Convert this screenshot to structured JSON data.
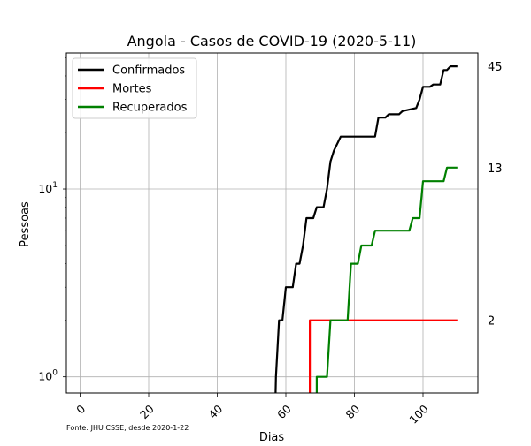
{
  "chart_data": {
    "type": "line",
    "title": "Angola - Casos de COVID-19 (2020-5-11)",
    "xlabel": "Dias",
    "ylabel": "Pessoas",
    "yscale": "log",
    "xlim": [
      -4,
      116
    ],
    "ylim": [
      0.82,
      53
    ],
    "grid": true,
    "legend_position": "top-left",
    "x_ticks": [
      0,
      20,
      40,
      60,
      80,
      100
    ],
    "x_tick_labels": [
      "0",
      "20",
      "40",
      "60",
      "80",
      "100"
    ],
    "y_ticks": [
      1,
      10
    ],
    "y_tick_labels": [
      {
        "base": "10",
        "exponent": "0"
      },
      {
        "base": "10",
        "exponent": "1"
      }
    ],
    "series": [
      {
        "name": "Confirmados",
        "color": "#000000",
        "x": [
          57,
          57.1,
          58,
          59,
          60,
          62,
          63,
          64,
          65,
          66,
          68,
          69,
          71,
          72,
          73,
          74,
          76,
          77,
          86,
          87,
          89,
          90,
          93,
          94,
          98,
          99,
          100,
          102,
          103,
          105,
          106,
          107,
          108,
          109,
          110
        ],
        "y": [
          0.82,
          1,
          2,
          2,
          3,
          3,
          4,
          4,
          5,
          7,
          7,
          8,
          8,
          10,
          14,
          16,
          19,
          19,
          19,
          24,
          24,
          25,
          25,
          26,
          27,
          30,
          35,
          35,
          36,
          36,
          43,
          43,
          45,
          45,
          45
        ]
      },
      {
        "name": "Mortes",
        "color": "#ff0000",
        "x": [
          67,
          67,
          110
        ],
        "y": [
          0.82,
          2,
          2
        ]
      },
      {
        "name": "Recuperados",
        "color": "#008000",
        "x": [
          69,
          69,
          72,
          73,
          78,
          79,
          81,
          82,
          85,
          86,
          96,
          97,
          99,
          100,
          106,
          107,
          110
        ],
        "y": [
          0.82,
          1,
          1,
          2,
          2,
          4,
          4,
          5,
          5,
          6,
          6,
          7,
          7,
          11,
          11,
          13,
          13
        ]
      }
    ],
    "end_labels": [
      {
        "series": "Confirmados",
        "text": "45",
        "value": 45
      },
      {
        "series": "Recuperados",
        "text": "13",
        "value": 13
      },
      {
        "series": "Mortes",
        "text": "2",
        "value": 2
      }
    ],
    "source_note": "Fonte: JHU CSSE, desde 2020-1-22"
  }
}
